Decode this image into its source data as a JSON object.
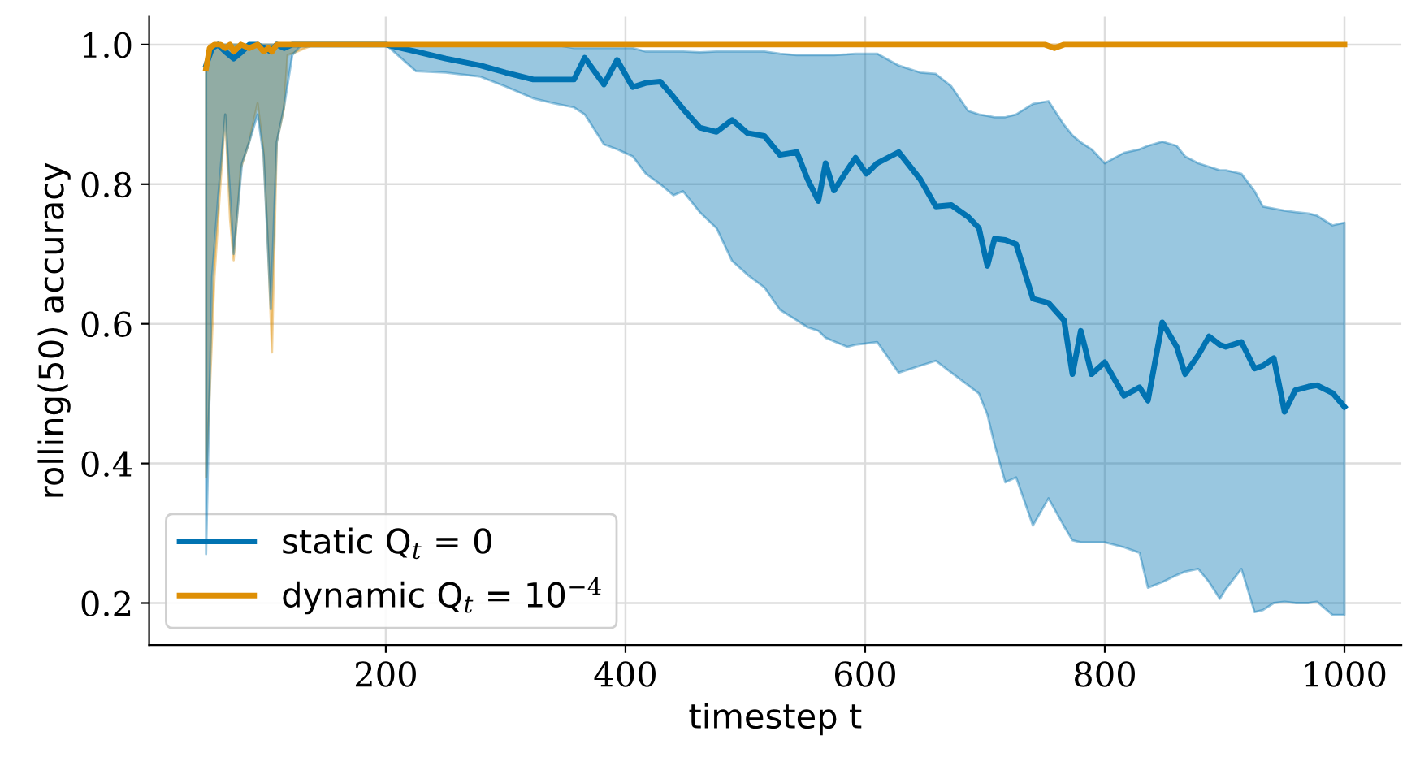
{
  "chart_data": {
    "type": "line",
    "xlabel": "timestep t",
    "ylabel": "rolling(50) accuracy",
    "xlim": [
      2.5,
      1047.5
    ],
    "ylim": [
      0.14,
      1.04
    ],
    "xticks": [
      200,
      400,
      600,
      800,
      1000
    ],
    "yticks": [
      0.2,
      0.4,
      0.6,
      0.8,
      {
        "value": 1.0,
        "label": "1.0"
      }
    ],
    "grid": true,
    "legend": "bottom left",
    "line_style": "solid",
    "marker": "none",
    "series": [
      {
        "name": "static Q$_{t}$ = 0",
        "color": "#0173b2",
        "x": [
          50,
          55,
          60,
          66,
          73,
          80,
          86,
          93,
          98,
          104,
          109,
          115,
          122,
          130,
          150,
          200,
          225,
          250,
          279,
          300,
          323,
          340,
          357,
          366,
          382,
          393,
          406,
          417,
          429,
          440,
          448,
          462,
          476,
          489,
          502,
          516,
          529,
          543,
          552,
          561,
          567,
          574,
          585,
          592,
          601,
          610,
          628,
          646,
          659,
          672,
          686,
          695,
          702,
          708,
          717,
          726,
          740,
          753,
          766,
          773,
          780,
          789,
          800,
          816,
          829,
          836,
          848,
          860,
          867,
          878,
          887,
          896,
          901,
          914,
          925,
          932,
          941,
          950,
          959,
          970,
          977,
          990,
          1000
        ],
        "values": [
          0.97,
          0.995,
          1.0,
          0.99,
          0.98,
          0.99,
          1.0,
          1.0,
          0.995,
          0.99,
          1.0,
          0.995,
          1.0,
          1.0,
          1.0,
          1.0,
          0.99,
          0.98,
          0.97,
          0.96,
          0.95,
          0.95,
          0.95,
          0.981,
          0.943,
          0.978,
          0.939,
          0.945,
          0.947,
          0.925,
          0.908,
          0.881,
          0.875,
          0.892,
          0.873,
          0.869,
          0.842,
          0.846,
          0.807,
          0.776,
          0.83,
          0.791,
          0.82,
          0.838,
          0.815,
          0.83,
          0.846,
          0.807,
          0.768,
          0.77,
          0.753,
          0.737,
          0.683,
          0.722,
          0.72,
          0.714,
          0.636,
          0.63,
          0.605,
          0.528,
          0.59,
          0.528,
          0.545,
          0.497,
          0.509,
          0.49,
          0.602,
          0.567,
          0.528,
          0.555,
          0.582,
          0.57,
          0.567,
          0.574,
          0.536,
          0.54,
          0.551,
          0.474,
          0.505,
          0.51,
          0.512,
          0.501,
          0.481
        ],
        "lower": [
          0.27,
          0.667,
          0.78,
          0.9,
          0.7,
          0.83,
          0.86,
          0.9,
          0.84,
          0.621,
          0.86,
          0.91,
          0.985,
          1.0,
          1.0,
          1.0,
          0.962,
          0.96,
          0.954,
          0.94,
          0.923,
          0.916,
          0.91,
          0.9,
          0.857,
          0.85,
          0.84,
          0.815,
          0.8,
          0.784,
          0.79,
          0.76,
          0.737,
          0.69,
          0.67,
          0.652,
          0.62,
          0.605,
          0.595,
          0.59,
          0.58,
          0.575,
          0.567,
          0.57,
          0.572,
          0.574,
          0.53,
          0.54,
          0.547,
          0.53,
          0.512,
          0.5,
          0.47,
          0.427,
          0.373,
          0.38,
          0.311,
          0.35,
          0.31,
          0.29,
          0.287,
          0.287,
          0.287,
          0.28,
          0.272,
          0.222,
          0.23,
          0.24,
          0.245,
          0.249,
          0.23,
          0.206,
          0.22,
          0.249,
          0.187,
          0.19,
          0.2,
          0.202,
          0.2,
          0.2,
          0.202,
          0.183,
          0.183
        ],
        "upper": [
          0.97,
          1.0,
          1.0,
          1.0,
          1.0,
          1.0,
          1.0,
          1.0,
          1.0,
          1.0,
          1.0,
          1.0,
          1.0,
          1.0,
          1.0,
          1.0,
          1.0,
          1.0,
          1.0,
          1.0,
          1.0,
          1.0,
          0.995,
          0.995,
          0.995,
          0.995,
          0.995,
          0.99,
          0.99,
          0.99,
          0.99,
          0.989,
          0.99,
          0.99,
          0.99,
          0.99,
          0.987,
          0.985,
          0.985,
          0.985,
          0.985,
          0.985,
          0.986,
          0.987,
          0.987,
          0.987,
          0.97,
          0.96,
          0.958,
          0.94,
          0.905,
          0.9,
          0.898,
          0.896,
          0.896,
          0.9,
          0.915,
          0.919,
          0.885,
          0.87,
          0.86,
          0.85,
          0.83,
          0.845,
          0.85,
          0.855,
          0.861,
          0.855,
          0.84,
          0.83,
          0.825,
          0.82,
          0.82,
          0.815,
          0.79,
          0.768,
          0.765,
          0.762,
          0.76,
          0.758,
          0.755,
          0.741,
          0.745
        ]
      },
      {
        "name": "dynamic Q$_{t}$ = 10$^{−4}$",
        "color": "#de8f05",
        "x": [
          50,
          53,
          57,
          62,
          66,
          70,
          73,
          79,
          86,
          93,
          98,
          102,
          105,
          109,
          115,
          118,
          126,
          140,
          200,
          400,
          600,
          750,
          758,
          766,
          800,
          1000
        ],
        "values": [
          0.966,
          0.995,
          1.0,
          1.0,
          0.995,
          1.0,
          0.99,
          1.0,
          0.995,
          1.0,
          0.99,
          0.995,
          0.99,
          1.0,
          1.0,
          1.0,
          1.0,
          1.0,
          1.0,
          1.0,
          1.0,
          1.0,
          0.995,
          1.0,
          1.0,
          1.0
        ],
        "lower": [
          0.38,
          0.5,
          0.667,
          0.8,
          0.9,
          0.75,
          0.691,
          0.823,
          0.861,
          0.916,
          0.846,
          0.7,
          0.559,
          0.861,
          0.908,
          0.985,
          0.99,
          1.0,
          1.0,
          1.0,
          1.0,
          1.0,
          0.995,
          1.0,
          1.0,
          1.0
        ],
        "upper": [
          0.966,
          1.0,
          1.0,
          1.0,
          1.0,
          1.0,
          1.0,
          1.0,
          1.0,
          1.0,
          1.0,
          1.0,
          1.0,
          1.0,
          1.0,
          1.0,
          1.0,
          1.0,
          1.0,
          1.0,
          1.0,
          1.0,
          1.0,
          1.0,
          1.0,
          1.0
        ]
      }
    ]
  }
}
